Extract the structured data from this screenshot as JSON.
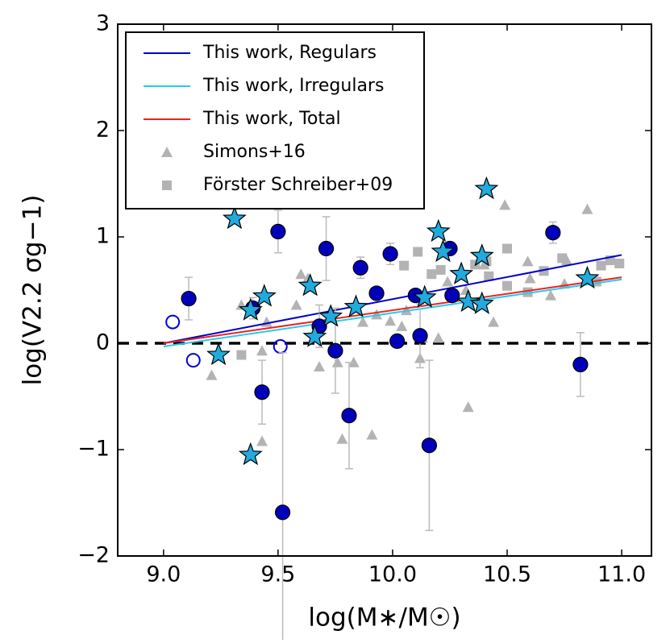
{
  "chart_data": {
    "type": "scatter",
    "xlabel": "log(M∗/M☉)",
    "ylabel": "log(V2.2 σg−1)",
    "xlim": [
      8.8,
      11.13
    ],
    "ylim": [
      -2,
      3
    ],
    "xticks": [
      {
        "value": 9,
        "label": "9.0"
      },
      {
        "value": 9.5,
        "label": "9.5"
      },
      {
        "value": 10,
        "label": "10.0"
      },
      {
        "value": 10.5,
        "label": "10.5"
      },
      {
        "value": 11,
        "label": "11.0"
      }
    ],
    "yticks": [
      {
        "value": -2,
        "label": "−2"
      },
      {
        "value": -1,
        "label": "−1"
      },
      0,
      1,
      2,
      3
    ],
    "hline": 0,
    "legend": "upper left",
    "series": [
      {
        "name": "This work, Regulars",
        "marker": "line",
        "color": "#0000cc",
        "x": [
          9.0,
          11.0
        ],
        "values": [
          0.0,
          0.83
        ]
      },
      {
        "name": "This work, Irregulars",
        "marker": "line",
        "color": "#22ccee",
        "x": [
          9.0,
          11.0
        ],
        "values": [
          -0.03,
          0.6
        ]
      },
      {
        "name": "This work, Total",
        "marker": "line",
        "color": "#ee2222",
        "x": [
          9.0,
          11.0
        ],
        "values": [
          0.0,
          0.62
        ]
      },
      {
        "name": "Simons+16",
        "marker": "triangle",
        "color": "#b3b3b3",
        "x": [
          9.21,
          9.34,
          9.43,
          9.43,
          9.45,
          9.58,
          9.6,
          9.63,
          9.68,
          9.73,
          9.76,
          9.78,
          9.83,
          9.91,
          9.87,
          9.93,
          9.99,
          10.04,
          10.06,
          10.12,
          10.13,
          10.2,
          10.24,
          10.32,
          10.33,
          10.4,
          10.44,
          10.49,
          10.59,
          10.6,
          10.69,
          10.75,
          10.85,
          10.76
        ],
        "values": [
          -0.3,
          0.36,
          -0.07,
          -0.92,
          0.2,
          0.36,
          0.65,
          0.61,
          -0.22,
          0.31,
          -0.18,
          -0.9,
          -0.18,
          -0.86,
          0.2,
          0.27,
          0.21,
          0.16,
          0.31,
          -0.14,
          0.05,
          0.05,
          0.58,
          0.5,
          -0.6,
          0.74,
          0.2,
          1.3,
          0.77,
          0.61,
          0.45,
          0.56,
          1.26,
          0.78
        ]
      },
      {
        "name": "Förster Schreiber+09",
        "marker": "square",
        "color": "#b3b3b3",
        "x": [
          9.34,
          10.05,
          10.11,
          10.17,
          10.21,
          10.36,
          10.41,
          10.5,
          10.42,
          10.5,
          10.59,
          10.66,
          10.74,
          10.91,
          10.95,
          10.99,
          10.89
        ],
        "values": [
          -0.11,
          0.73,
          0.86,
          0.65,
          0.69,
          0.74,
          0.77,
          0.89,
          0.63,
          0.54,
          0.48,
          0.68,
          0.8,
          0.73,
          0.78,
          0.75,
          0.58
        ]
      },
      {
        "marker": "circle",
        "color": "#0000bb",
        "x": [
          9.11,
          9.39,
          9.5,
          9.43,
          9.52,
          9.71,
          9.68,
          9.75,
          9.86,
          9.81,
          9.93,
          9.99,
          10.02,
          10.1,
          10.12,
          10.16,
          10.25,
          10.26,
          10.7,
          10.82
        ],
        "values": [
          0.42,
          0.33,
          1.05,
          -0.46,
          -1.59,
          0.89,
          0.16,
          -0.07,
          0.71,
          -0.68,
          0.47,
          0.84,
          0.02,
          0.45,
          0.07,
          -0.96,
          0.89,
          0.45,
          1.04,
          -0.2
        ],
        "errors": [
          0.2,
          0.1,
          0.2,
          0.3,
          1.5,
          0.3,
          0.2,
          0.4,
          0.1,
          0.5,
          0.05,
          0.1,
          0.05,
          0.05,
          0.3,
          0.8,
          0.05,
          0.05,
          0.1,
          0.3
        ]
      },
      {
        "marker": "open-circle",
        "color": "#0000dd",
        "x": [
          9.04,
          9.13,
          9.51
        ],
        "values": [
          0.2,
          -0.16,
          -0.03
        ]
      },
      {
        "marker": "star",
        "color": "#22aadd",
        "x": [
          9.31,
          9.24,
          9.38,
          9.38,
          9.44,
          9.64,
          9.66,
          9.73,
          9.84,
          10.14,
          10.2,
          10.22,
          10.3,
          10.33,
          10.39,
          10.39,
          10.41,
          10.85
        ],
        "values": [
          1.17,
          -0.11,
          -1.05,
          0.31,
          0.44,
          0.54,
          0.06,
          0.25,
          0.34,
          0.43,
          1.05,
          0.86,
          0.65,
          0.39,
          0.37,
          0.82,
          1.45,
          0.61
        ]
      }
    ]
  }
}
